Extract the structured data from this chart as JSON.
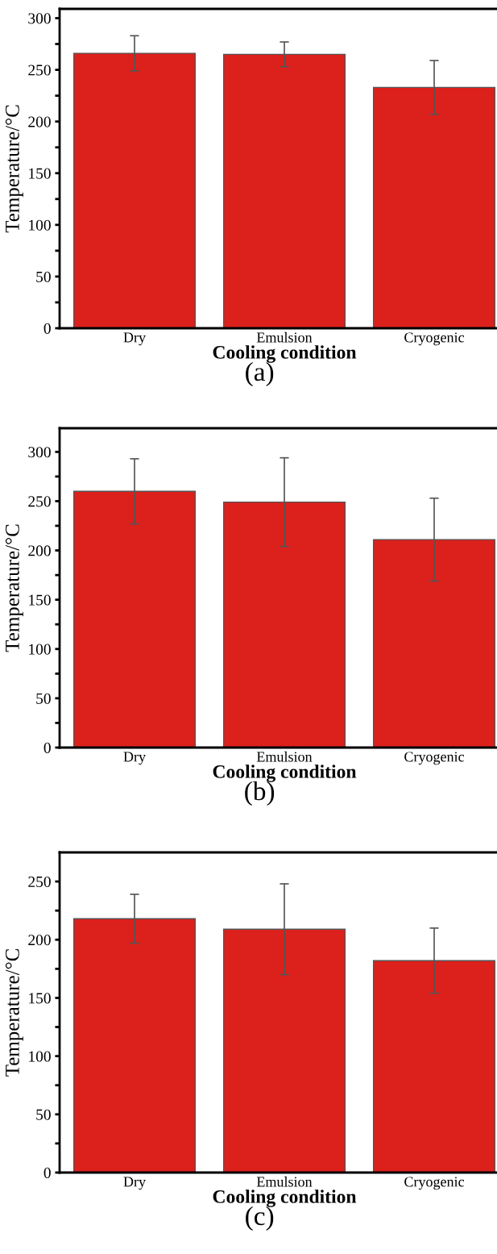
{
  "chart_data": [
    {
      "type": "bar",
      "categories": [
        "Dry",
        "Emulsion",
        "Cryogenic"
      ],
      "values": [
        266,
        265,
        233
      ],
      "errors": [
        17,
        12,
        26
      ],
      "color": "#dc201c",
      "xlabel": "Cooling condition",
      "ylabel": "Temperature/°C",
      "ylim": [
        0,
        309
      ],
      "yticks": [
        0,
        {
          "value": 25,
          "label": null
        },
        50,
        {
          "value": 75,
          "label": null
        },
        100,
        {
          "value": 125,
          "label": null
        },
        150,
        {
          "value": 175,
          "label": null
        },
        200,
        {
          "value": 225,
          "label": null
        },
        250,
        {
          "value": 275,
          "label": null
        },
        300
      ],
      "annotations": [
        "(a)"
      ]
    },
    {
      "type": "bar",
      "categories": [
        "Dry",
        "Emulsion",
        "Cryogenic"
      ],
      "values": [
        260,
        249,
        211
      ],
      "errors": [
        33,
        45,
        42
      ],
      "color": "#dc201c",
      "xlabel": "Cooling condition",
      "ylabel": "Temperature/°C",
      "ylim": [
        0,
        324
      ],
      "yticks": [
        0,
        {
          "value": 25,
          "label": null
        },
        50,
        {
          "value": 75,
          "label": null
        },
        100,
        {
          "value": 125,
          "label": null
        },
        150,
        {
          "value": 175,
          "label": null
        },
        200,
        {
          "value": 225,
          "label": null
        },
        250,
        {
          "value": 275,
          "label": null
        },
        300
      ],
      "annotations": [
        "(b)"
      ]
    },
    {
      "type": "bar",
      "categories": [
        "Dry",
        "Emulsion",
        "Cryogenic"
      ],
      "values": [
        218,
        209,
        182
      ],
      "errors": [
        21,
        39,
        28
      ],
      "color": "#dc201c",
      "xlabel": "Cooling condition",
      "ylabel": "Temperature/°C",
      "ylim": [
        0,
        275
      ],
      "yticks": [
        0,
        {
          "value": 25,
          "label": null
        },
        50,
        {
          "value": 75,
          "label": null
        },
        100,
        {
          "value": 125,
          "label": null
        },
        150,
        {
          "value": 175,
          "label": null
        },
        200,
        {
          "value": 225,
          "label": null
        },
        250
      ],
      "annotations": [
        "(c)"
      ]
    }
  ]
}
